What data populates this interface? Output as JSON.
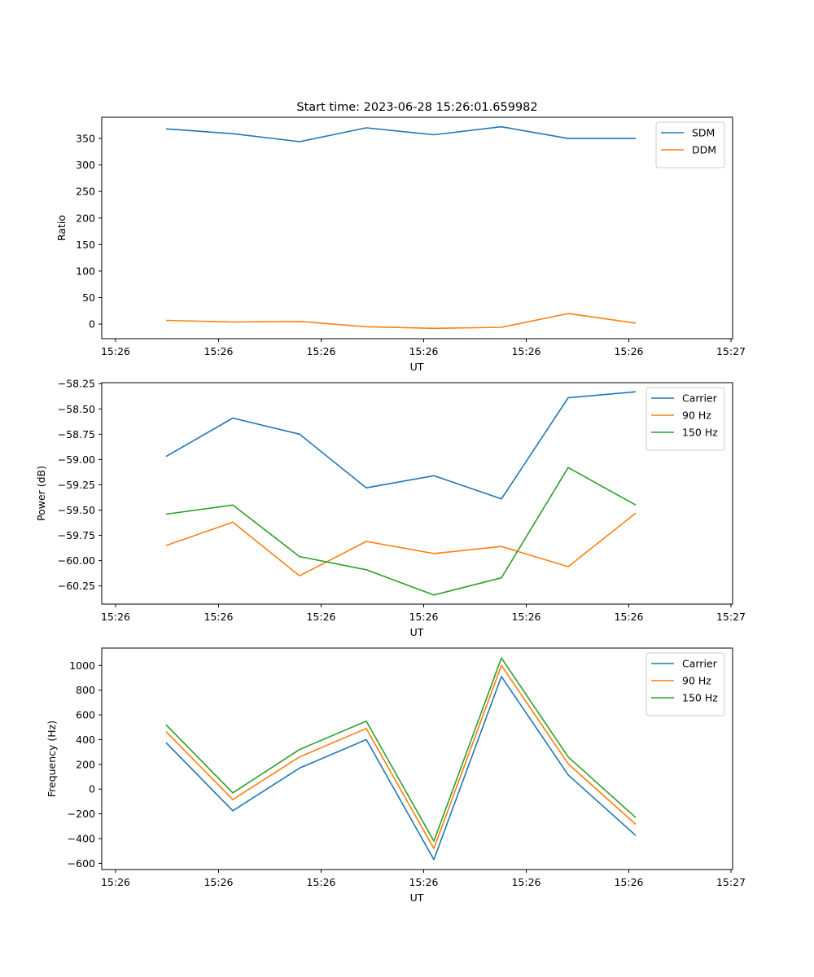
{
  "figure": {
    "title": "Start time: 2023-06-28 15:26:01.659982"
  },
  "chart_data": [
    {
      "type": "line",
      "title": "Start time: 2023-06-28 15:26:01.659982",
      "xlabel": "UT",
      "ylabel": "Ratio",
      "x_ticklabels": [
        "15:26",
        "15:26",
        "15:26",
        "15:26",
        "15:26",
        "15:26",
        "15:27"
      ],
      "yticks": [
        0,
        50,
        100,
        150,
        200,
        250,
        300,
        350
      ],
      "ylim": [
        -27.5,
        390
      ],
      "grid": false,
      "legend_position": "upper-right",
      "series": [
        {
          "name": "SDM",
          "color": "#1f77b4",
          "values": [
            368,
            359,
            344,
            370,
            357,
            372,
            350,
            350
          ]
        },
        {
          "name": "DDM",
          "color": "#ff7f0e",
          "values": [
            7,
            4,
            5,
            -5,
            -8,
            -6,
            20,
            2
          ]
        }
      ]
    },
    {
      "type": "line",
      "title": "",
      "xlabel": "UT",
      "ylabel": "Power (dB)",
      "x_ticklabels": [
        "15:26",
        "15:26",
        "15:26",
        "15:26",
        "15:26",
        "15:26",
        "15:27"
      ],
      "yticks": [
        -60.25,
        -60.0,
        -59.75,
        -59.5,
        -59.25,
        -59.0,
        -58.75,
        -58.5,
        -58.25
      ],
      "ytick_labels": [
        "−60.25",
        "−60.00",
        "−59.75",
        "−59.50",
        "−59.25",
        "−59.00",
        "−58.75",
        "−58.50",
        "−58.25"
      ],
      "ylim": [
        -60.43,
        -58.24
      ],
      "grid": false,
      "legend_position": "upper-right",
      "series": [
        {
          "name": "Carrier",
          "color": "#1f77b4",
          "values": [
            -58.97,
            -58.59,
            -58.75,
            -59.28,
            -59.16,
            -59.39,
            -58.39,
            -58.33
          ]
        },
        {
          "name": "90 Hz",
          "color": "#ff7f0e",
          "values": [
            -59.85,
            -59.62,
            -60.15,
            -59.81,
            -59.93,
            -59.86,
            -60.06,
            -59.53
          ]
        },
        {
          "name": "150 Hz",
          "color": "#2ca02c",
          "values": [
            -59.54,
            -59.45,
            -59.96,
            -60.09,
            -60.34,
            -60.17,
            -59.08,
            -59.45
          ]
        }
      ]
    },
    {
      "type": "line",
      "title": "",
      "xlabel": "UT",
      "ylabel": "Frequency (Hz)",
      "x_ticklabels": [
        "15:26",
        "15:26",
        "15:26",
        "15:26",
        "15:26",
        "15:26",
        "15:27"
      ],
      "yticks": [
        -600,
        -400,
        -200,
        0,
        200,
        400,
        600,
        800,
        1000
      ],
      "ytick_labels": [
        "−600",
        "−400",
        "−200",
        "0",
        "200",
        "400",
        "600",
        "800",
        "1000"
      ],
      "ylim": [
        -650,
        1140
      ],
      "grid": false,
      "legend_position": "upper-right",
      "series": [
        {
          "name": "Carrier",
          "color": "#1f77b4",
          "values": [
            375,
            -175,
            170,
            400,
            -570,
            910,
            115,
            -375
          ]
        },
        {
          "name": "90 Hz",
          "color": "#ff7f0e",
          "values": [
            465,
            -85,
            260,
            490,
            -480,
            1000,
            205,
            -285
          ]
        },
        {
          "name": "150 Hz",
          "color": "#2ca02c",
          "values": [
            520,
            -30,
            320,
            550,
            -420,
            1060,
            260,
            -230
          ]
        }
      ]
    }
  ]
}
